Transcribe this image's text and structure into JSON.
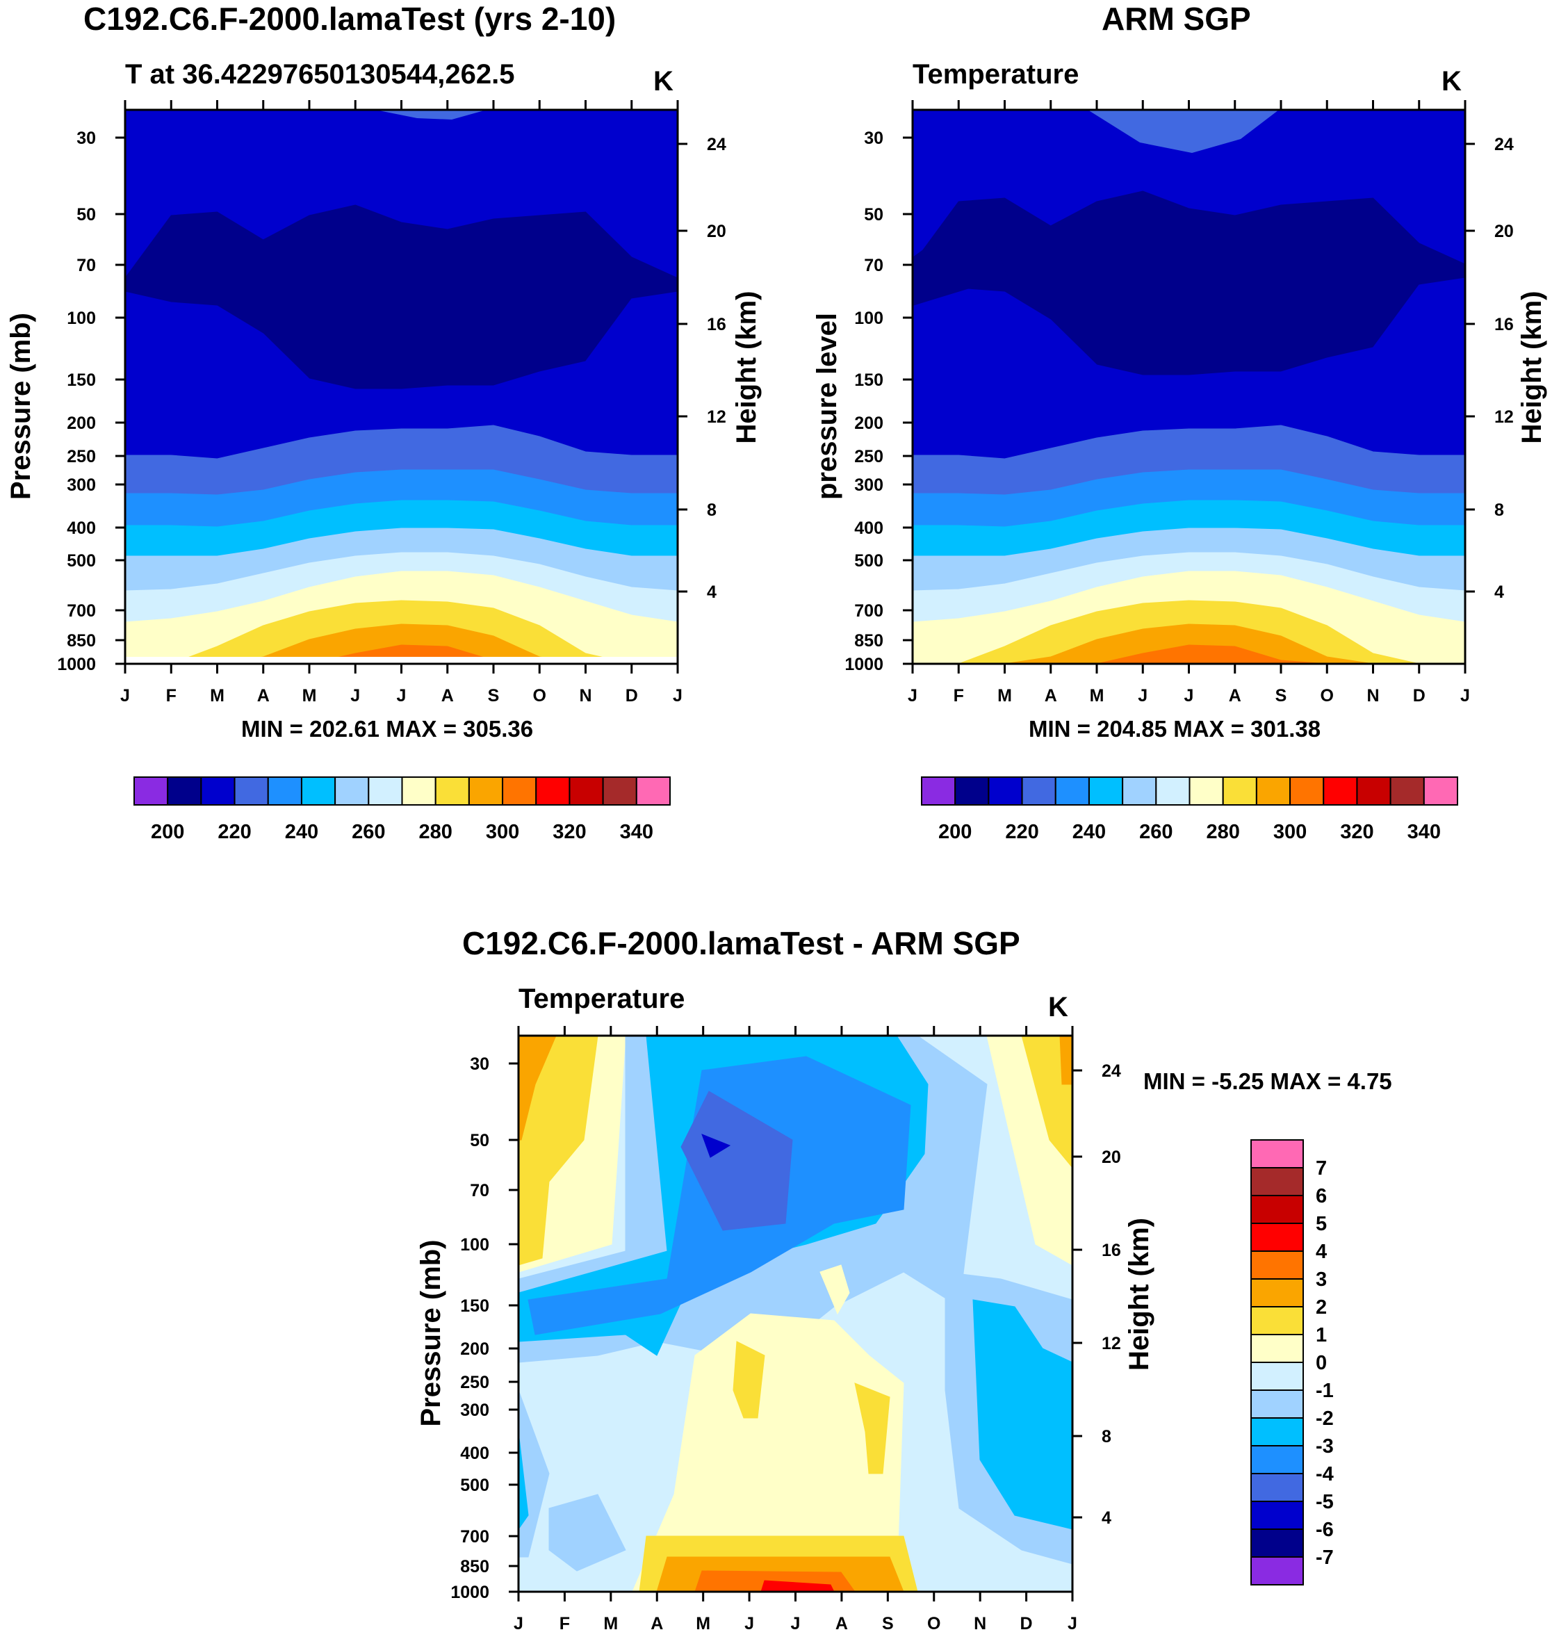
{
  "colors": {
    "abs_scale": [
      "#8a2be2",
      "#00008b",
      "#0000cd",
      "#4169e1",
      "#1e90ff",
      "#00bfff",
      "#a0d2ff",
      "#d2f0ff",
      "#ffffc8",
      "#fadf37",
      "#faa500",
      "#ff7400",
      "#ff0000",
      "#c80000",
      "#a52a2a",
      "#ff69b4"
    ],
    "diff_scale": [
      "#8a2be2",
      "#00008b",
      "#0000cd",
      "#4169e1",
      "#1e90ff",
      "#00bfff",
      "#a0d2ff",
      "#d2f0ff",
      "#ffffc8",
      "#fadf37",
      "#faa500",
      "#ff7400",
      "#ff0000",
      "#c80000",
      "#a52a2a",
      "#ff69b4"
    ]
  },
  "chart_data": [
    {
      "type": "heatmap",
      "title": "C192.C6.F-2000.lamaTest (yrs 2-10)",
      "left_label": "T at 36.42297650130544,262.5",
      "units": "K",
      "ylabel": "Pressure (mb)",
      "y2label": "Height (km)",
      "months": [
        "J",
        "F",
        "M",
        "A",
        "M",
        "J",
        "J",
        "A",
        "S",
        "O",
        "N",
        "D",
        "J"
      ],
      "pressure_ticks": [
        "30",
        "50",
        "70",
        "100",
        "150",
        "200",
        "250",
        "300",
        "400",
        "500",
        "700",
        "850",
        "1000"
      ],
      "height_ticks": [
        "24",
        "20",
        "16",
        "12",
        "8",
        "4"
      ],
      "minmax": "MIN = 202.61 MAX = 305.36",
      "colorbar_labels": [
        "200",
        "220",
        "240",
        "260",
        "280",
        "300",
        "320",
        "340"
      ]
    },
    {
      "type": "heatmap",
      "title": "ARM SGP",
      "left_label": "Temperature",
      "units": "K",
      "ylabel": "pressure level",
      "y2label": "Height (km)",
      "months": [
        "J",
        "F",
        "M",
        "A",
        "M",
        "J",
        "J",
        "A",
        "S",
        "O",
        "N",
        "D",
        "J"
      ],
      "pressure_ticks": [
        "30",
        "50",
        "70",
        "100",
        "150",
        "200",
        "250",
        "300",
        "400",
        "500",
        "700",
        "850",
        "1000"
      ],
      "height_ticks": [
        "24",
        "20",
        "16",
        "12",
        "8",
        "4"
      ],
      "minmax": "MIN = 204.85 MAX = 301.38",
      "colorbar_labels": [
        "200",
        "220",
        "240",
        "260",
        "280",
        "300",
        "320",
        "340"
      ]
    },
    {
      "type": "heatmap",
      "title": "C192.C6.F-2000.lamaTest - ARM SGP",
      "left_label": "Temperature",
      "units": "K",
      "ylabel": "Pressure (mb)",
      "y2label": "Height (km)",
      "months": [
        "J",
        "F",
        "M",
        "A",
        "M",
        "J",
        "J",
        "A",
        "S",
        "O",
        "N",
        "D",
        "J"
      ],
      "pressure_ticks": [
        "30",
        "50",
        "70",
        "100",
        "150",
        "200",
        "250",
        "300",
        "400",
        "500",
        "700",
        "850",
        "1000"
      ],
      "height_ticks": [
        "24",
        "20",
        "16",
        "12",
        "8",
        "4"
      ],
      "minmax": "MIN =  -5.25 MAX =   4.75",
      "colorbar_labels": [
        "7",
        "6",
        "5",
        "4",
        "3",
        "2",
        "1",
        "0",
        "-1",
        "-2",
        "-3",
        "-4",
        "-5",
        "-6",
        "-7"
      ]
    }
  ]
}
